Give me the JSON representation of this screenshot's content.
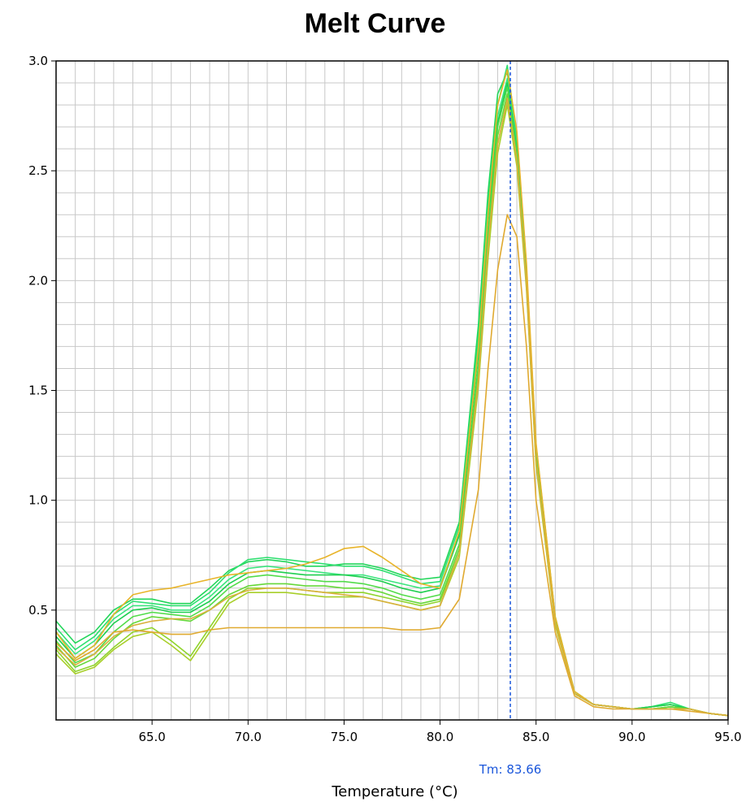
{
  "chart_data": {
    "type": "line",
    "title": "Melt Curve",
    "xlabel": "Temperature (°C)",
    "ylabel": "",
    "xlim": [
      60.0,
      95.0
    ],
    "ylim": [
      0.0,
      3.0
    ],
    "x_ticks": [
      "65.0",
      "70.0",
      "75.0",
      "80.0",
      "85.0",
      "90.0",
      "95.0"
    ],
    "y_ticks": [
      "0.5",
      "1.0",
      "1.5",
      "2.0",
      "2.5",
      "3.0"
    ],
    "grid": true,
    "legend": "none",
    "annotation": {
      "label": "Tm: 83.66",
      "x": 83.66,
      "color": "#1a56db"
    },
    "series": [
      {
        "color": "#22d65a",
        "x": [
          60,
          61,
          62,
          63,
          64,
          65,
          66,
          67,
          68,
          69,
          70,
          71,
          72,
          73,
          74,
          75,
          76,
          77,
          78,
          79,
          80,
          81,
          82,
          82.5,
          83,
          83.5,
          84,
          84.5,
          85,
          86,
          87,
          88,
          89,
          90,
          91,
          92,
          93,
          94,
          95
        ],
        "values": [
          0.45,
          0.35,
          0.4,
          0.5,
          0.55,
          0.55,
          0.53,
          0.53,
          0.6,
          0.68,
          0.72,
          0.73,
          0.72,
          0.7,
          0.7,
          0.71,
          0.71,
          0.69,
          0.66,
          0.64,
          0.65,
          0.9,
          1.8,
          2.4,
          2.85,
          2.95,
          2.6,
          2.0,
          1.2,
          0.45,
          0.12,
          0.07,
          0.06,
          0.05,
          0.06,
          0.07,
          0.05,
          0.03,
          0.02
        ]
      },
      {
        "color": "#2ee070",
        "x": [
          60,
          61,
          62,
          63,
          64,
          65,
          66,
          67,
          68,
          69,
          70,
          71,
          72,
          73,
          74,
          75,
          76,
          77,
          78,
          79,
          80,
          81,
          82,
          82.5,
          83,
          83.5,
          84,
          84.5,
          85,
          86,
          87,
          88,
          89,
          90,
          91,
          92,
          93,
          94,
          95
        ],
        "values": [
          0.42,
          0.32,
          0.38,
          0.48,
          0.54,
          0.53,
          0.52,
          0.52,
          0.58,
          0.67,
          0.73,
          0.74,
          0.73,
          0.72,
          0.71,
          0.7,
          0.7,
          0.68,
          0.65,
          0.62,
          0.63,
          0.88,
          1.75,
          2.35,
          2.8,
          2.98,
          2.65,
          2.05,
          1.25,
          0.47,
          0.13,
          0.07,
          0.06,
          0.05,
          0.06,
          0.08,
          0.05,
          0.03,
          0.02
        ]
      },
      {
        "color": "#3ce57e",
        "x": [
          60,
          61,
          62,
          63,
          64,
          65,
          66,
          67,
          68,
          69,
          70,
          71,
          72,
          73,
          74,
          75,
          76,
          77,
          78,
          79,
          80,
          81,
          82,
          82.5,
          83,
          83.5,
          84,
          84.5,
          85,
          86,
          87,
          88,
          89,
          90,
          91,
          92,
          93,
          94,
          95
        ],
        "values": [
          0.4,
          0.3,
          0.36,
          0.46,
          0.52,
          0.52,
          0.5,
          0.5,
          0.56,
          0.64,
          0.69,
          0.7,
          0.69,
          0.68,
          0.67,
          0.66,
          0.66,
          0.64,
          0.62,
          0.6,
          0.61,
          0.85,
          1.7,
          2.3,
          2.75,
          2.92,
          2.62,
          2.02,
          1.22,
          0.46,
          0.12,
          0.07,
          0.06,
          0.05,
          0.05,
          0.06,
          0.05,
          0.03,
          0.02
        ]
      },
      {
        "color": "#1fcf50",
        "x": [
          60,
          61,
          62,
          63,
          64,
          65,
          66,
          67,
          68,
          69,
          70,
          71,
          72,
          73,
          74,
          75,
          76,
          77,
          78,
          79,
          80,
          81,
          82,
          82.5,
          83,
          83.5,
          84,
          84.5,
          85,
          86,
          87,
          88,
          89,
          90,
          91,
          92,
          93,
          94,
          95
        ],
        "values": [
          0.38,
          0.28,
          0.34,
          0.44,
          0.5,
          0.51,
          0.49,
          0.49,
          0.54,
          0.62,
          0.67,
          0.68,
          0.67,
          0.66,
          0.66,
          0.66,
          0.65,
          0.63,
          0.6,
          0.58,
          0.6,
          0.84,
          1.68,
          2.28,
          2.72,
          2.9,
          2.6,
          2.0,
          1.2,
          0.45,
          0.12,
          0.07,
          0.06,
          0.05,
          0.06,
          0.07,
          0.05,
          0.03,
          0.02
        ]
      },
      {
        "color": "#52dc4a",
        "x": [
          60,
          61,
          62,
          63,
          64,
          65,
          66,
          67,
          68,
          69,
          70,
          71,
          72,
          73,
          74,
          75,
          76,
          77,
          78,
          79,
          80,
          81,
          82,
          82.5,
          83,
          83.5,
          84,
          84.5,
          85,
          86,
          87,
          88,
          89,
          90,
          91,
          92,
          93,
          94,
          95
        ],
        "values": [
          0.36,
          0.26,
          0.3,
          0.4,
          0.47,
          0.49,
          0.48,
          0.47,
          0.52,
          0.6,
          0.65,
          0.66,
          0.65,
          0.64,
          0.63,
          0.63,
          0.62,
          0.6,
          0.57,
          0.55,
          0.57,
          0.8,
          1.62,
          2.22,
          2.7,
          2.88,
          2.58,
          2.0,
          1.2,
          0.45,
          0.12,
          0.07,
          0.06,
          0.05,
          0.05,
          0.06,
          0.05,
          0.03,
          0.02
        ]
      },
      {
        "color": "#66d83a",
        "x": [
          60,
          61,
          62,
          63,
          64,
          65,
          66,
          67,
          68,
          69,
          70,
          71,
          72,
          73,
          74,
          75,
          76,
          77,
          78,
          79,
          80,
          81,
          82,
          82.5,
          83,
          83.5,
          84,
          84.5,
          85,
          86,
          87,
          88,
          89,
          90,
          91,
          92,
          93,
          94,
          95
        ],
        "values": [
          0.34,
          0.24,
          0.28,
          0.37,
          0.44,
          0.47,
          0.46,
          0.45,
          0.5,
          0.57,
          0.61,
          0.62,
          0.62,
          0.61,
          0.61,
          0.6,
          0.6,
          0.58,
          0.55,
          0.53,
          0.55,
          0.78,
          1.58,
          2.18,
          2.66,
          2.85,
          2.56,
          1.98,
          1.18,
          0.44,
          0.12,
          0.07,
          0.06,
          0.05,
          0.05,
          0.06,
          0.05,
          0.03,
          0.02
        ]
      },
      {
        "color": "#8fd42c",
        "x": [
          60,
          61,
          62,
          63,
          64,
          65,
          66,
          67,
          68,
          69,
          70,
          71,
          72,
          73,
          74,
          75,
          76,
          77,
          78,
          79,
          80,
          81,
          82,
          82.5,
          83,
          83.5,
          84,
          84.5,
          85,
          86,
          87,
          88,
          89,
          90,
          91,
          92,
          93,
          94,
          95
        ],
        "values": [
          0.32,
          0.22,
          0.25,
          0.33,
          0.4,
          0.42,
          0.36,
          0.29,
          0.42,
          0.55,
          0.6,
          0.6,
          0.6,
          0.59,
          0.58,
          0.58,
          0.58,
          0.56,
          0.54,
          0.52,
          0.54,
          0.76,
          1.55,
          2.15,
          2.62,
          2.82,
          2.55,
          1.98,
          1.18,
          0.44,
          0.12,
          0.07,
          0.06,
          0.05,
          0.05,
          0.05,
          0.05,
          0.03,
          0.02
        ]
      },
      {
        "color": "#a8cf2a",
        "x": [
          60,
          61,
          62,
          63,
          64,
          65,
          66,
          67,
          68,
          69,
          70,
          71,
          72,
          73,
          74,
          75,
          76,
          77,
          78,
          79,
          80,
          81,
          82,
          82.5,
          83,
          83.5,
          84,
          84.5,
          85,
          86,
          87,
          88,
          89,
          90,
          91,
          92,
          93,
          94,
          95
        ],
        "values": [
          0.3,
          0.21,
          0.24,
          0.32,
          0.38,
          0.4,
          0.34,
          0.27,
          0.4,
          0.53,
          0.58,
          0.58,
          0.58,
          0.57,
          0.56,
          0.56,
          0.56,
          0.54,
          0.52,
          0.5,
          0.52,
          0.74,
          1.52,
          2.1,
          2.58,
          2.8,
          2.52,
          1.96,
          1.16,
          0.43,
          0.12,
          0.07,
          0.06,
          0.05,
          0.05,
          0.05,
          0.05,
          0.03,
          0.02
        ]
      },
      {
        "color": "#e8b42a",
        "x": [
          60,
          61,
          62,
          63,
          64,
          65,
          66,
          67,
          68,
          69,
          70,
          71,
          72,
          73,
          74,
          75,
          76,
          77,
          78,
          79,
          80,
          81,
          82,
          82.5,
          83,
          83.5,
          84,
          84.5,
          85,
          86,
          87,
          88,
          89,
          90,
          91,
          92,
          93,
          94,
          95
        ],
        "values": [
          0.4,
          0.28,
          0.34,
          0.48,
          0.57,
          0.59,
          0.6,
          0.62,
          0.64,
          0.66,
          0.67,
          0.68,
          0.69,
          0.71,
          0.74,
          0.78,
          0.79,
          0.74,
          0.68,
          0.62,
          0.6,
          0.86,
          1.7,
          2.3,
          2.8,
          2.96,
          2.68,
          2.08,
          1.26,
          0.47,
          0.13,
          0.07,
          0.06,
          0.05,
          0.05,
          0.05,
          0.05,
          0.03,
          0.02
        ]
      },
      {
        "color": "#e0aa30",
        "x": [
          60,
          61,
          62,
          63,
          64,
          65,
          66,
          67,
          68,
          69,
          70,
          71,
          72,
          73,
          74,
          75,
          76,
          77,
          78,
          79,
          80,
          81,
          82,
          82.5,
          83,
          83.5,
          84,
          84.5,
          85,
          86,
          87,
          88,
          89,
          90,
          91,
          92,
          93,
          94,
          95
        ],
        "values": [
          0.35,
          0.27,
          0.32,
          0.4,
          0.41,
          0.4,
          0.39,
          0.39,
          0.41,
          0.42,
          0.42,
          0.42,
          0.42,
          0.42,
          0.42,
          0.42,
          0.42,
          0.42,
          0.41,
          0.41,
          0.42,
          0.55,
          1.05,
          1.6,
          2.05,
          2.3,
          2.2,
          1.7,
          1.0,
          0.4,
          0.11,
          0.06,
          0.05,
          0.05,
          0.05,
          0.05,
          0.04,
          0.03,
          0.02
        ]
      },
      {
        "color": "#d9b03c",
        "x": [
          60,
          61,
          62,
          63,
          64,
          65,
          66,
          67,
          68,
          69,
          70,
          71,
          72,
          73,
          74,
          75,
          76,
          77,
          78,
          79,
          80,
          81,
          82,
          82.5,
          83,
          83.5,
          84,
          84.5,
          85,
          86,
          87,
          88,
          89,
          90,
          91,
          92,
          93,
          94,
          95
        ],
        "values": [
          0.33,
          0.25,
          0.3,
          0.38,
          0.43,
          0.45,
          0.46,
          0.46,
          0.5,
          0.56,
          0.59,
          0.6,
          0.6,
          0.59,
          0.58,
          0.57,
          0.56,
          0.54,
          0.52,
          0.5,
          0.52,
          0.76,
          1.55,
          2.15,
          2.62,
          2.83,
          2.55,
          1.98,
          1.18,
          0.44,
          0.12,
          0.07,
          0.06,
          0.05,
          0.05,
          0.05,
          0.05,
          0.03,
          0.02
        ]
      }
    ]
  }
}
